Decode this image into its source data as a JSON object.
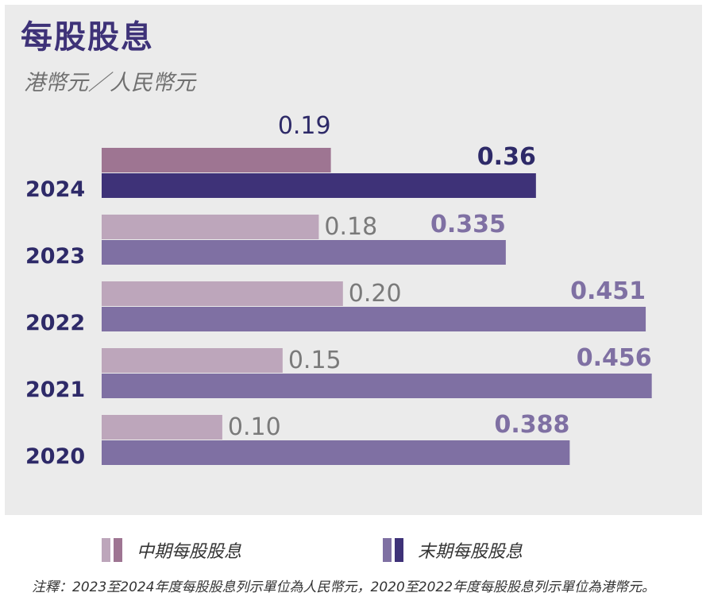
{
  "title": "每股股息",
  "subtitle": "港幣元／人民幣元",
  "legend": {
    "interim": "中期每股股息",
    "final": "末期每股股息"
  },
  "note": "注釋：2023至2024年度每股股息列示單位為人民幣元，2020至2022年度每股股息列示單位為港幣元。",
  "colors": {
    "interim": "#bda6bb",
    "final": "#7f70a3",
    "interim_highlight": "#9e7592",
    "final_highlight": "#3e3278",
    "interim_label": "#7a7a7a",
    "final_label": "#7f70a3",
    "highlight_label": "#2e2a68"
  },
  "chart_data": {
    "type": "bar",
    "orientation": "horizontal",
    "categories": [
      "2024",
      "2023",
      "2022",
      "2021",
      "2020"
    ],
    "series": [
      {
        "name": "中期每股股息",
        "values": [
          0.19,
          0.18,
          0.2,
          0.15,
          0.1
        ],
        "labels": [
          "0.19",
          "0.18",
          "0.20",
          "0.15",
          "0.10"
        ]
      },
      {
        "name": "末期每股股息",
        "values": [
          0.36,
          0.335,
          0.451,
          0.456,
          0.388
        ],
        "labels": [
          "0.36",
          "0.335",
          "0.451",
          "0.456",
          "0.388"
        ]
      }
    ],
    "highlight_category": "2024",
    "xlim": [
      0,
      0.456
    ],
    "grid": false,
    "legend_position": "bottom"
  }
}
